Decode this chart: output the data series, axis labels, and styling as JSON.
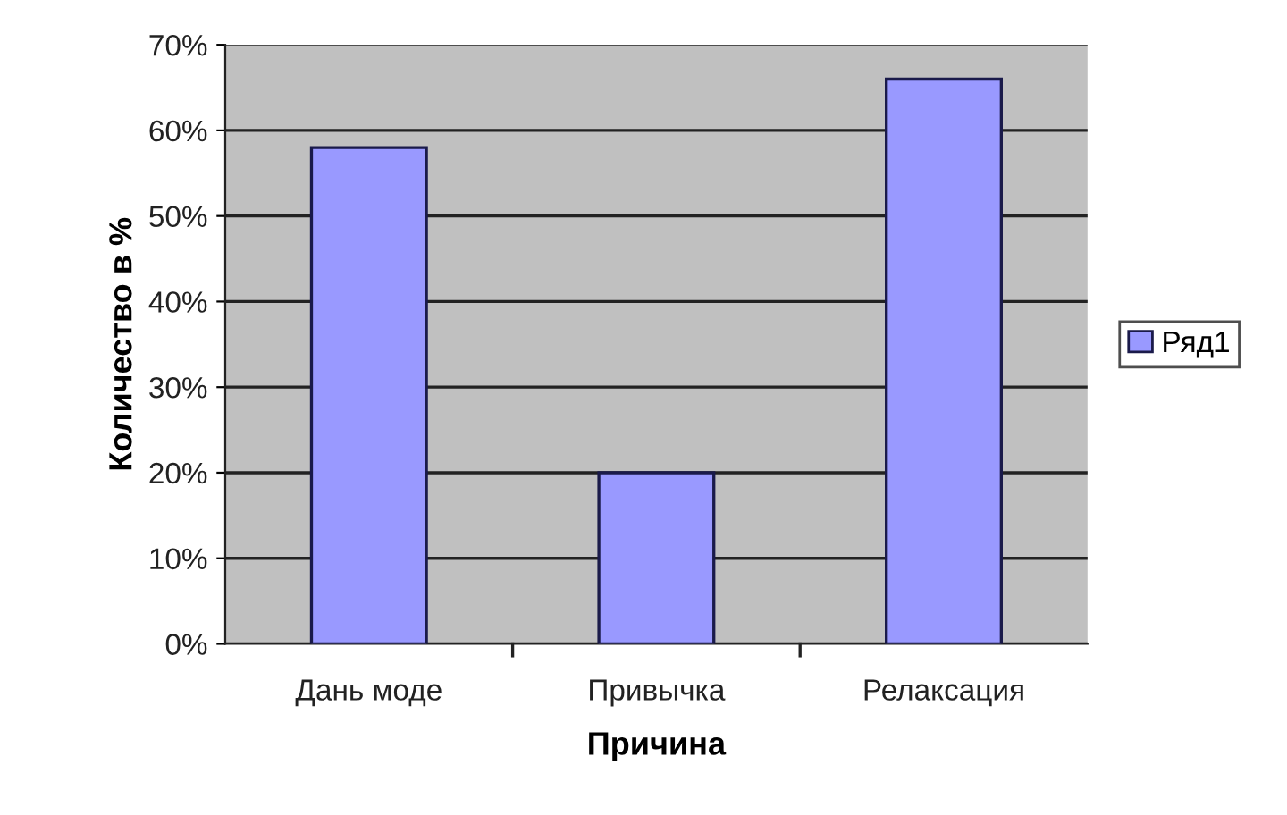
{
  "chart_data": {
    "type": "bar",
    "xlabel": "Причина",
    "ylabel": "Количество в %",
    "categories": [
      "Дань моде",
      "Привычка",
      "Релаксация"
    ],
    "series": [
      {
        "name": "Ряд1",
        "color": "#9999ff",
        "values": [
          58,
          20,
          66
        ]
      }
    ],
    "ylim": [
      0,
      70
    ],
    "yticks": [
      {
        "value": 0,
        "label": "0%"
      },
      {
        "value": 10,
        "label": "10%"
      },
      {
        "value": 20,
        "label": "20%"
      },
      {
        "value": 30,
        "label": "30%"
      },
      {
        "value": 40,
        "label": "40%"
      },
      {
        "value": 50,
        "label": "50%"
      },
      {
        "value": 60,
        "label": "60%"
      },
      {
        "value": 70,
        "label": "70%"
      }
    ],
    "grid": "y",
    "legend": "right"
  }
}
